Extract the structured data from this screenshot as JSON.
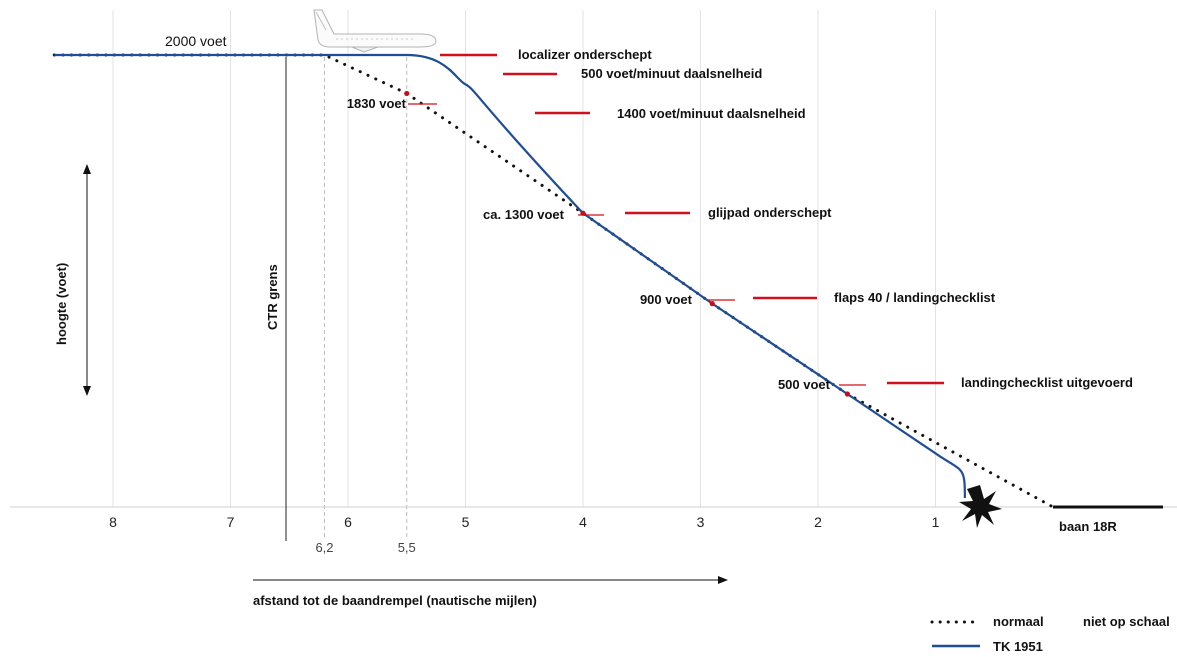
{
  "chart_data": {
    "type": "line",
    "title": "",
    "xlabel": "afstand tot de baandrempel (nautische mijlen)",
    "ylabel": "hoogte (voet)",
    "x_ticks": [
      "8",
      "7",
      "6",
      "5",
      "4",
      "3",
      "2",
      "1"
    ],
    "x_tick_values": [
      8,
      7,
      6,
      5,
      4,
      3,
      2,
      1
    ],
    "x_markers": [
      {
        "label": "6,2",
        "x": 6.2
      },
      {
        "label": "5,5",
        "x": 5.5
      }
    ],
    "xlim": [
      8.5,
      0
    ],
    "ylim": [
      0,
      2000
    ],
    "grid": "vertical",
    "vertical_line": {
      "label": "CTR grens",
      "x": 6.75
    },
    "level_label": "2000 voet",
    "runway_label": "baan 18R",
    "series": [
      {
        "name": "normaal",
        "style": "dotted",
        "color": "#111111",
        "points": [
          {
            "x": 8.5,
            "y": 2000
          },
          {
            "x": 6.2,
            "y": 2000
          },
          {
            "x": 5.5,
            "y": 1830
          },
          {
            "x": 4.0,
            "y": 1300
          },
          {
            "x": 2.9,
            "y": 900
          },
          {
            "x": 1.75,
            "y": 500
          },
          {
            "x": 0.0,
            "y": 0
          }
        ]
      },
      {
        "name": "TK 1951",
        "style": "solid",
        "color": "#1f4e96",
        "points": [
          {
            "x": 8.5,
            "y": 2000
          },
          {
            "x": 5.5,
            "y": 2000
          },
          {
            "x": 5.0,
            "y": 1870
          },
          {
            "x": 4.6,
            "y": 1620
          },
          {
            "x": 4.0,
            "y": 1300
          },
          {
            "x": 2.9,
            "y": 900
          },
          {
            "x": 1.75,
            "y": 500
          },
          {
            "x": 0.95,
            "y": 220
          },
          {
            "x": 0.75,
            "y": 40
          }
        ]
      }
    ],
    "annotations": [
      {
        "text": "localizer onderschept",
        "side": "right"
      },
      {
        "text": "500 voet/minuut daalsnelheid",
        "side": "right"
      },
      {
        "text": "1400 voet/minuut daalsnelheid",
        "side": "right"
      },
      {
        "text": "glijpad onderschept",
        "side": "right"
      },
      {
        "text": "flaps 40 / landingchecklist",
        "side": "right"
      },
      {
        "text": "landingchecklist uitgevoerd",
        "side": "right"
      },
      {
        "text": "1830 voet",
        "side": "left"
      },
      {
        "text": "ca. 1300 voet",
        "side": "left"
      },
      {
        "text": "900 voet",
        "side": "left"
      },
      {
        "text": "500 voet",
        "side": "left"
      }
    ],
    "legend": {
      "placement": "bottom-right",
      "note": "niet op schaal"
    }
  },
  "colors": {
    "accent": "#d0101c",
    "tk": "#1f4e96",
    "grid": "#e3e3e3"
  },
  "icons": {
    "airplane": "airplane-icon",
    "crash": "crash-burst-icon"
  }
}
